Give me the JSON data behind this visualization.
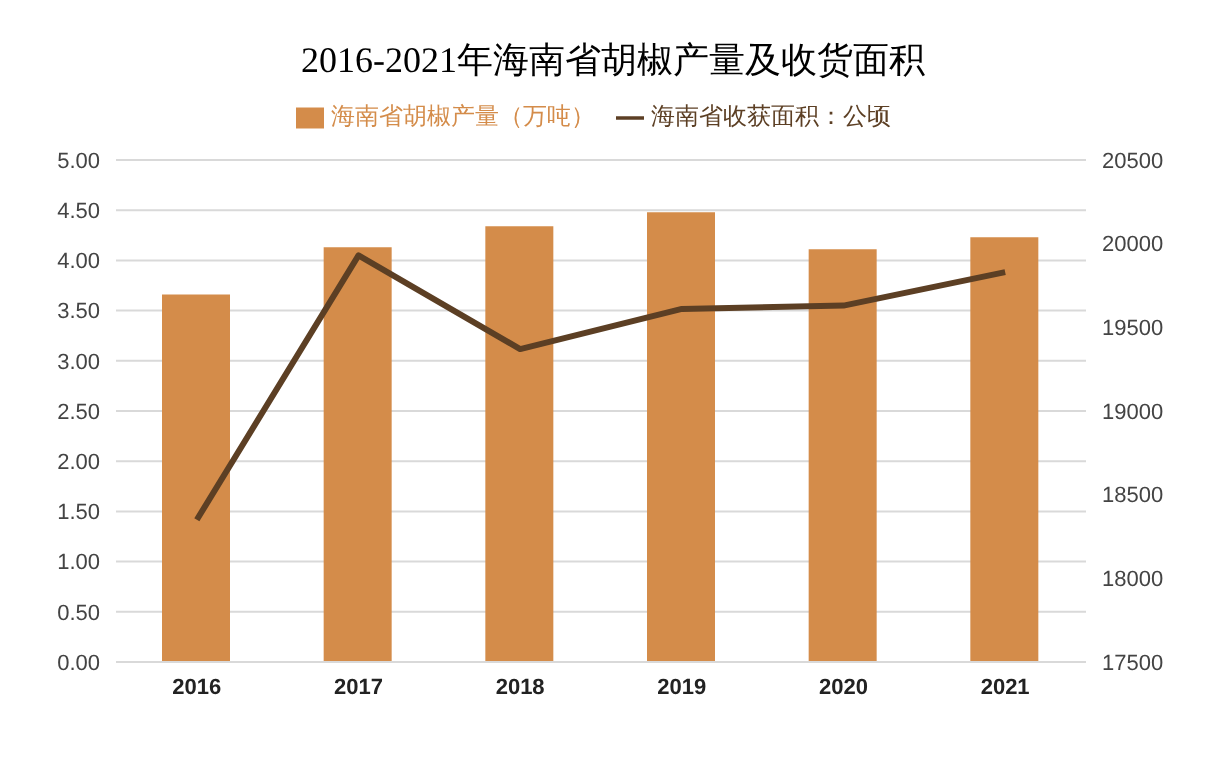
{
  "chart_data": {
    "type": "bar",
    "title": "2016-2021年海南省胡椒产量及收货面积",
    "categories": [
      "2016",
      "2017",
      "2018",
      "2019",
      "2020",
      "2021"
    ],
    "series": [
      {
        "name": "海南省胡椒产量（万吨）",
        "color": "#d48c4a",
        "values": [
          3.66,
          4.13,
          4.34,
          4.48,
          4.11,
          4.23
        ]
      },
      {
        "name": "海南省收获面积：公顷",
        "type": "line",
        "axis": "y2",
        "color": "#5c3f24",
        "values": [
          18350,
          19930,
          19370,
          19610,
          19630,
          19830
        ]
      }
    ],
    "ylim": [
      0,
      5
    ],
    "yticks": [
      {
        "value": 0,
        "label": "0.00"
      },
      {
        "value": 0.5,
        "label": "0.50"
      },
      {
        "value": 1,
        "label": "1.00"
      },
      {
        "value": 1.5,
        "label": "1.50"
      },
      {
        "value": 2,
        "label": "2.00"
      },
      {
        "value": 2.5,
        "label": "2.50"
      },
      {
        "value": 3,
        "label": "3.00"
      },
      {
        "value": 3.5,
        "label": "3.50"
      },
      {
        "value": 4,
        "label": "4.00"
      },
      {
        "value": 4.5,
        "label": "4.50"
      },
      {
        "value": 5,
        "label": "5.00"
      }
    ],
    "y2lim": [
      17500,
      20500
    ],
    "y2ticks": [
      17500,
      18000,
      18500,
      19000,
      19500,
      20000,
      20500
    ],
    "grid": "y",
    "legend": "top",
    "marker": "none",
    "line_style": "solid"
  }
}
